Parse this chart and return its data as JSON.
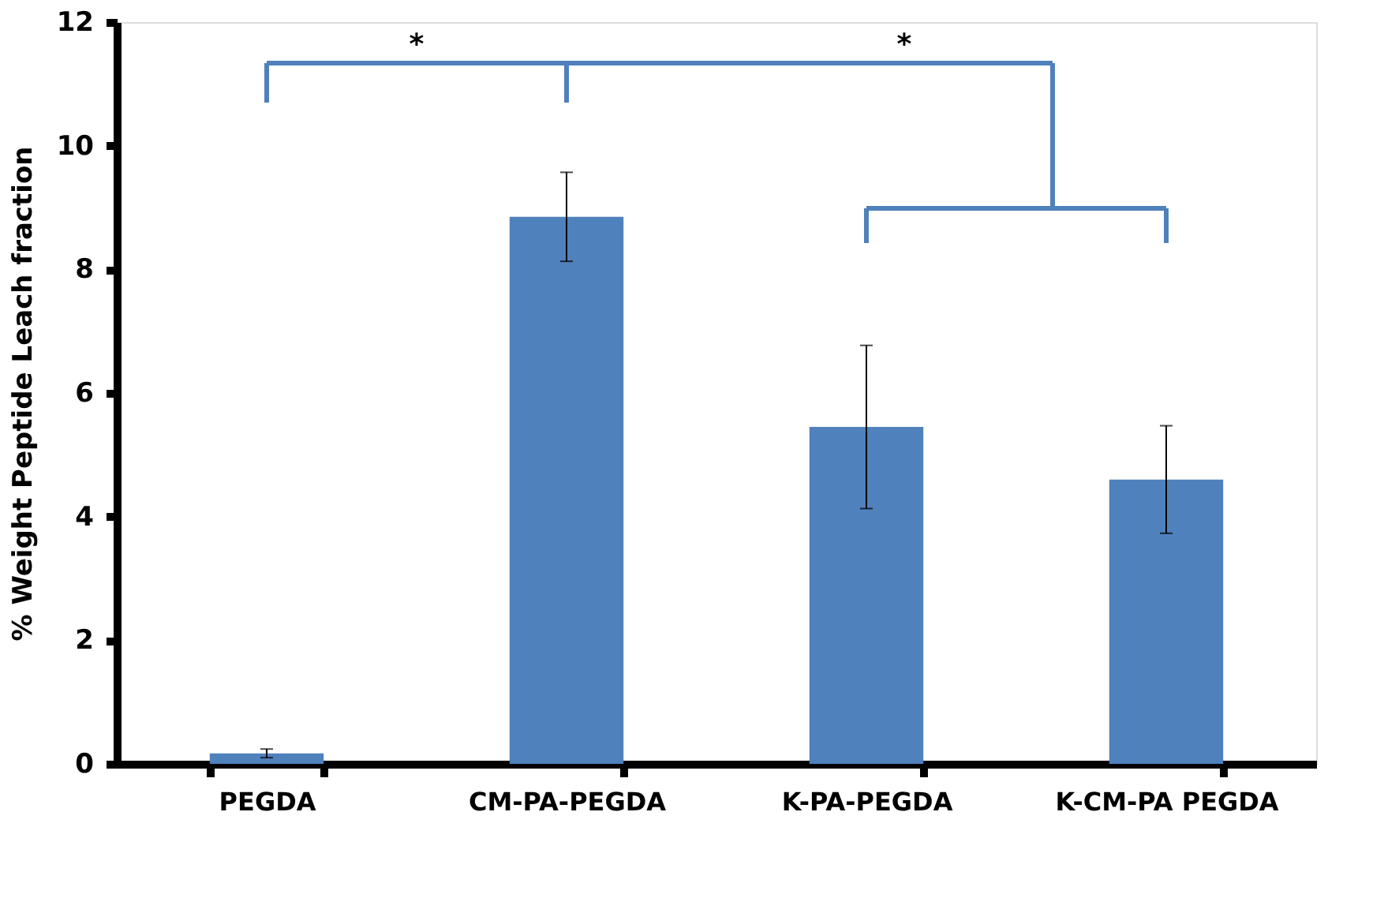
{
  "chart_data": {
    "type": "bar",
    "ylabel": "% Weight Peptide Leach fraction",
    "categories": [
      "PEGDA",
      "CM-PA-PEGDA",
      "K-PA-PEGDA",
      "K-CM-PA PEGDA"
    ],
    "values": [
      0.17,
      8.85,
      5.45,
      4.6
    ],
    "errors": [
      0.07,
      0.72,
      1.32,
      0.87
    ],
    "color": "#4f81bd",
    "ylim": [
      0,
      12
    ],
    "yticks": [
      0,
      2,
      4,
      6,
      8,
      10,
      12
    ],
    "grid": false,
    "annotations": [
      "*",
      "*"
    ]
  }
}
